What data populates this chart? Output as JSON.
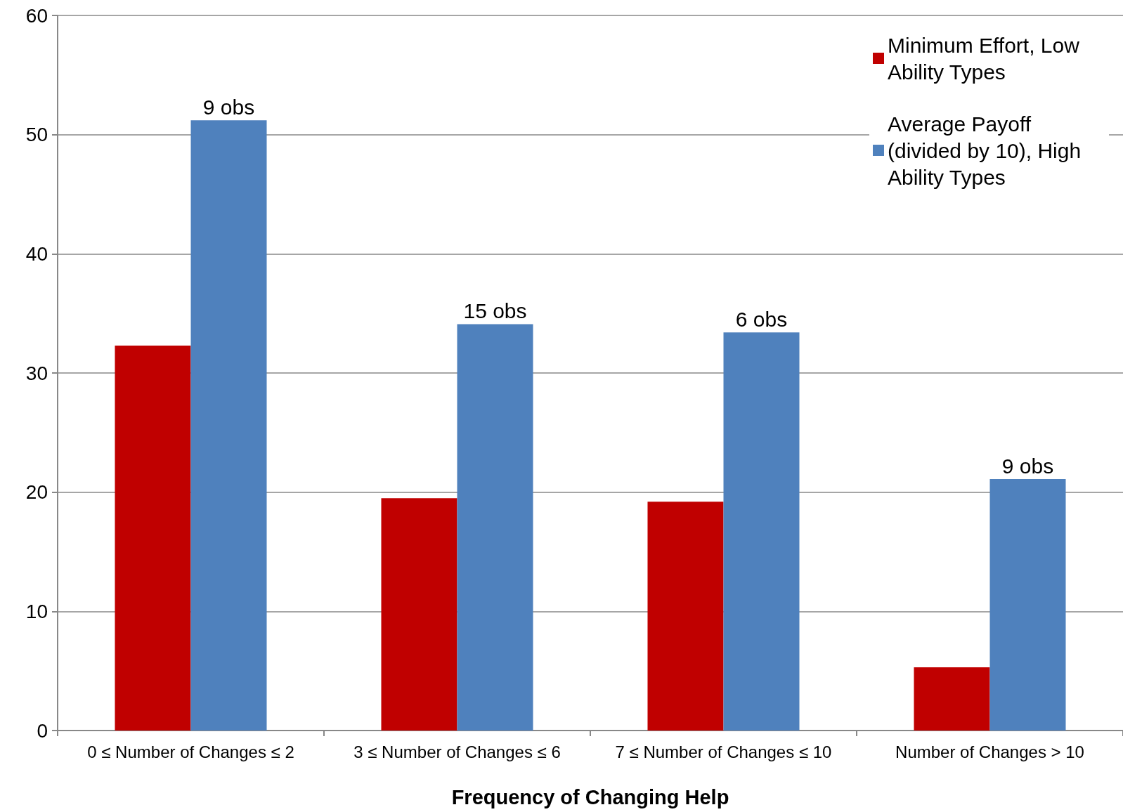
{
  "chart_data": {
    "type": "bar",
    "xlabel": "Frequency of Changing Help",
    "categories": [
      "0 ≤ Number of Changes ≤ 2",
      "3 ≤ Number of Changes ≤ 6",
      "7 ≤ Number of Changes ≤ 10",
      "Number of Changes > 10"
    ],
    "series": [
      {
        "name": "Minimum Effort, Low Ability Types",
        "color": "#c00000",
        "values": [
          32.3,
          19.5,
          19.2,
          5.3
        ]
      },
      {
        "name": "Average Payoff (divided by 10), High Ability Types",
        "color": "#4f81bd",
        "values": [
          51.2,
          34.1,
          33.4,
          21.1
        ]
      }
    ],
    "annotations": [
      {
        "text": "9 obs",
        "x": "0 ≤ Number of Changes ≤ 2",
        "y": 51.2
      },
      {
        "text": "15 obs",
        "x": "3 ≤ Number of Changes ≤ 6",
        "y": 34.1
      },
      {
        "text": "6 obs",
        "x": "7 ≤ Number of Changes ≤ 10",
        "y": 33.4
      },
      {
        "text": "9 obs",
        "x": "Number of Changes > 10",
        "y": 21.1
      }
    ],
    "ylim": [
      0,
      60
    ],
    "yticks": [
      0,
      10,
      20,
      30,
      40,
      50,
      60
    ],
    "grid": "y",
    "legend": "top right"
  }
}
